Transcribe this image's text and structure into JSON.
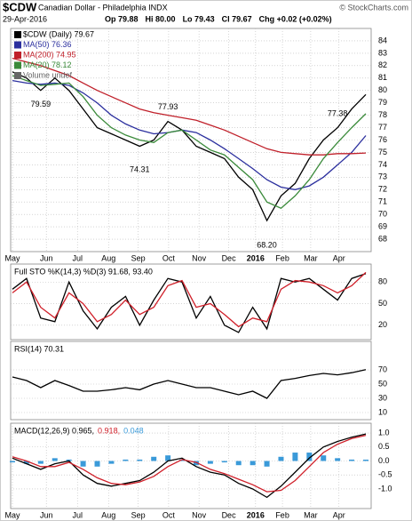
{
  "header": {
    "symbol": "$CDW",
    "name": "Canadian Dollar - Philadelphia INDX",
    "date": "29-Apr-2016",
    "quote": [
      "Op 79.88",
      "Hi 80.00",
      "Lo 79.43",
      "Cl 79.67",
      "Chg +0.02 (+0.02%)"
    ],
    "credit": "© StockCharts.com"
  },
  "chart_data": [
    {
      "type": "line",
      "legend": [
        "$CDW (Daily) 79.67",
        "MA(50) 76.36",
        "MA(200) 74.95",
        "MA(20) 78.12",
        "Volume undef"
      ],
      "series": [
        {
          "color": "#000000",
          "values": [
            81.5,
            81.0,
            80.0,
            81.0,
            80.0,
            78.5,
            77.0,
            76.5,
            76.0,
            75.5,
            76.0,
            77.5,
            76.8,
            75.5,
            75.0,
            74.5,
            73.0,
            72.0,
            69.5,
            71.5,
            72.5,
            74.5,
            76.0,
            77.0,
            78.5,
            79.67
          ]
        },
        {
          "color": "#2b2f9e",
          "values": [
            80.8,
            80.6,
            80.5,
            80.6,
            80.4,
            79.8,
            79.0,
            78.0,
            77.3,
            76.8,
            76.5,
            76.6,
            76.8,
            76.6,
            76.0,
            75.3,
            74.5,
            73.7,
            72.8,
            72.2,
            72.0,
            72.3,
            73.0,
            74.0,
            75.0,
            76.36
          ]
        },
        {
          "color": "#c0202a",
          "values": [
            82.6,
            82.3,
            82.0,
            81.6,
            81.2,
            80.6,
            80.0,
            79.5,
            79.0,
            78.5,
            78.2,
            78.0,
            77.8,
            77.6,
            77.2,
            76.8,
            76.3,
            75.8,
            75.3,
            75.0,
            74.9,
            74.8,
            74.8,
            74.9,
            74.9,
            74.95
          ]
        },
        {
          "color": "#3a8a3a",
          "values": [
            81.2,
            80.8,
            80.4,
            80.5,
            80.6,
            79.5,
            78.0,
            77.0,
            76.4,
            76.0,
            75.8,
            76.6,
            76.8,
            76.0,
            75.2,
            74.8,
            73.8,
            72.8,
            71.0,
            70.5,
            71.5,
            72.8,
            74.5,
            75.8,
            77.0,
            78.12
          ]
        }
      ],
      "annotations": [
        {
          "x": 2,
          "value": 79.59
        },
        {
          "x": 11,
          "value": 77.93
        },
        {
          "x": 9,
          "value": 74.31
        },
        {
          "x": 18,
          "value": 68.2,
          "label": "68.20"
        },
        {
          "x": 23,
          "value": 77.38
        }
      ],
      "ylim": [
        67,
        85
      ],
      "yticks": [
        68,
        69,
        70,
        71,
        72,
        73,
        74,
        75,
        76,
        77,
        78,
        79,
        80,
        81,
        82,
        83,
        84
      ],
      "grid": true,
      "xticks": [
        {
          "value": 0,
          "label": "May"
        },
        {
          "value": 2.4,
          "label": "Jun"
        },
        {
          "value": 4.6,
          "label": "Jul"
        },
        {
          "value": 6.8,
          "label": "Aug"
        },
        {
          "value": 8.9,
          "label": "Sep"
        },
        {
          "value": 11.05,
          "label": "Oct"
        },
        {
          "value": 13.2,
          "label": "Nov"
        },
        {
          "value": 15.3,
          "label": "Dec"
        },
        {
          "value": 17.2,
          "label": "2016"
        },
        {
          "value": 19.1,
          "label": "Feb"
        },
        {
          "value": 21.1,
          "label": "Mar"
        },
        {
          "value": 23.1,
          "label": "Apr"
        }
      ]
    },
    {
      "type": "line",
      "legend": [
        "Full STO %K(14,3) %D(3) 91.68, 93.40"
      ],
      "series": [
        {
          "color": "#000000",
          "values": [
            70,
            85,
            30,
            25,
            80,
            40,
            15,
            45,
            60,
            20,
            55,
            85,
            80,
            30,
            60,
            20,
            10,
            45,
            15,
            85,
            80,
            85,
            70,
            55,
            85,
            91.68
          ]
        },
        {
          "color": "#d0202a",
          "values": [
            65,
            80,
            45,
            30,
            65,
            50,
            25,
            35,
            55,
            35,
            45,
            75,
            82,
            45,
            50,
            35,
            18,
            30,
            25,
            70,
            82,
            80,
            75,
            65,
            75,
            93.4
          ]
        }
      ],
      "ylim": [
        0,
        105
      ],
      "yticks": [
        20,
        50,
        80
      ],
      "grid": true
    },
    {
      "type": "line",
      "legend": [
        "RSI(14) 70.31"
      ],
      "series": [
        {
          "color": "#000000",
          "values": [
            60,
            55,
            45,
            55,
            48,
            40,
            40,
            42,
            45,
            42,
            50,
            55,
            50,
            45,
            45,
            40,
            35,
            40,
            30,
            55,
            58,
            62,
            65,
            63,
            66,
            70.31
          ]
        }
      ],
      "ylim": [
        0,
        110
      ],
      "yticks": [
        10,
        30,
        50,
        70
      ],
      "grid": true
    },
    {
      "type": "line",
      "legend": [
        "MACD(12,26,9) 0.965,",
        "0.918,",
        "0.048"
      ],
      "series": [
        {
          "color": "#000000",
          "values": [
            0.1,
            -0.1,
            -0.3,
            -0.1,
            0.0,
            -0.5,
            -0.8,
            -0.9,
            -0.8,
            -0.7,
            -0.4,
            0.0,
            0.1,
            -0.2,
            -0.4,
            -0.5,
            -0.8,
            -1.0,
            -1.3,
            -0.9,
            -0.4,
            0.1,
            0.5,
            0.7,
            0.85,
            0.965
          ]
        },
        {
          "color": "#d0202a",
          "values": [
            0.15,
            0.0,
            -0.2,
            -0.2,
            -0.05,
            -0.3,
            -0.6,
            -0.8,
            -0.85,
            -0.75,
            -0.55,
            -0.2,
            0.05,
            -0.05,
            -0.3,
            -0.45,
            -0.65,
            -0.85,
            -1.1,
            -1.05,
            -0.7,
            -0.2,
            0.3,
            0.6,
            0.8,
            0.918
          ]
        },
        {
          "color": "#3a9ad9",
          "type": "bar",
          "values": [
            -0.05,
            -0.1,
            -0.1,
            0.1,
            0.05,
            -0.2,
            -0.2,
            -0.1,
            0.05,
            0.05,
            0.15,
            0.2,
            0.05,
            -0.15,
            -0.1,
            -0.05,
            -0.15,
            -0.15,
            -0.2,
            0.15,
            0.3,
            0.3,
            0.2,
            0.1,
            0.05,
            0.048
          ]
        }
      ],
      "ylim": [
        -1.7,
        1.35
      ],
      "yticks": [
        {
          "value": -1.0,
          "label": "-1.0"
        },
        -0.5,
        {
          "value": 0,
          "label": "0.0"
        },
        0.5,
        {
          "value": 1.0,
          "label": "1.0"
        }
      ],
      "grid": true,
      "xticks": [
        {
          "value": 0,
          "label": "May"
        },
        {
          "value": 2.4,
          "label": "Jun"
        },
        {
          "value": 4.6,
          "label": "Jul"
        },
        {
          "value": 6.8,
          "label": "Aug"
        },
        {
          "value": 8.9,
          "label": "Sep"
        },
        {
          "value": 11.05,
          "label": "Oct"
        },
        {
          "value": 13.2,
          "label": "Nov"
        },
        {
          "value": 15.3,
          "label": "Dec"
        },
        {
          "value": 17.2,
          "label": "2016"
        },
        {
          "value": 19.1,
          "label": "Feb"
        },
        {
          "value": 21.1,
          "label": "Mar"
        },
        {
          "value": 23.1,
          "label": "Apr"
        }
      ]
    }
  ]
}
